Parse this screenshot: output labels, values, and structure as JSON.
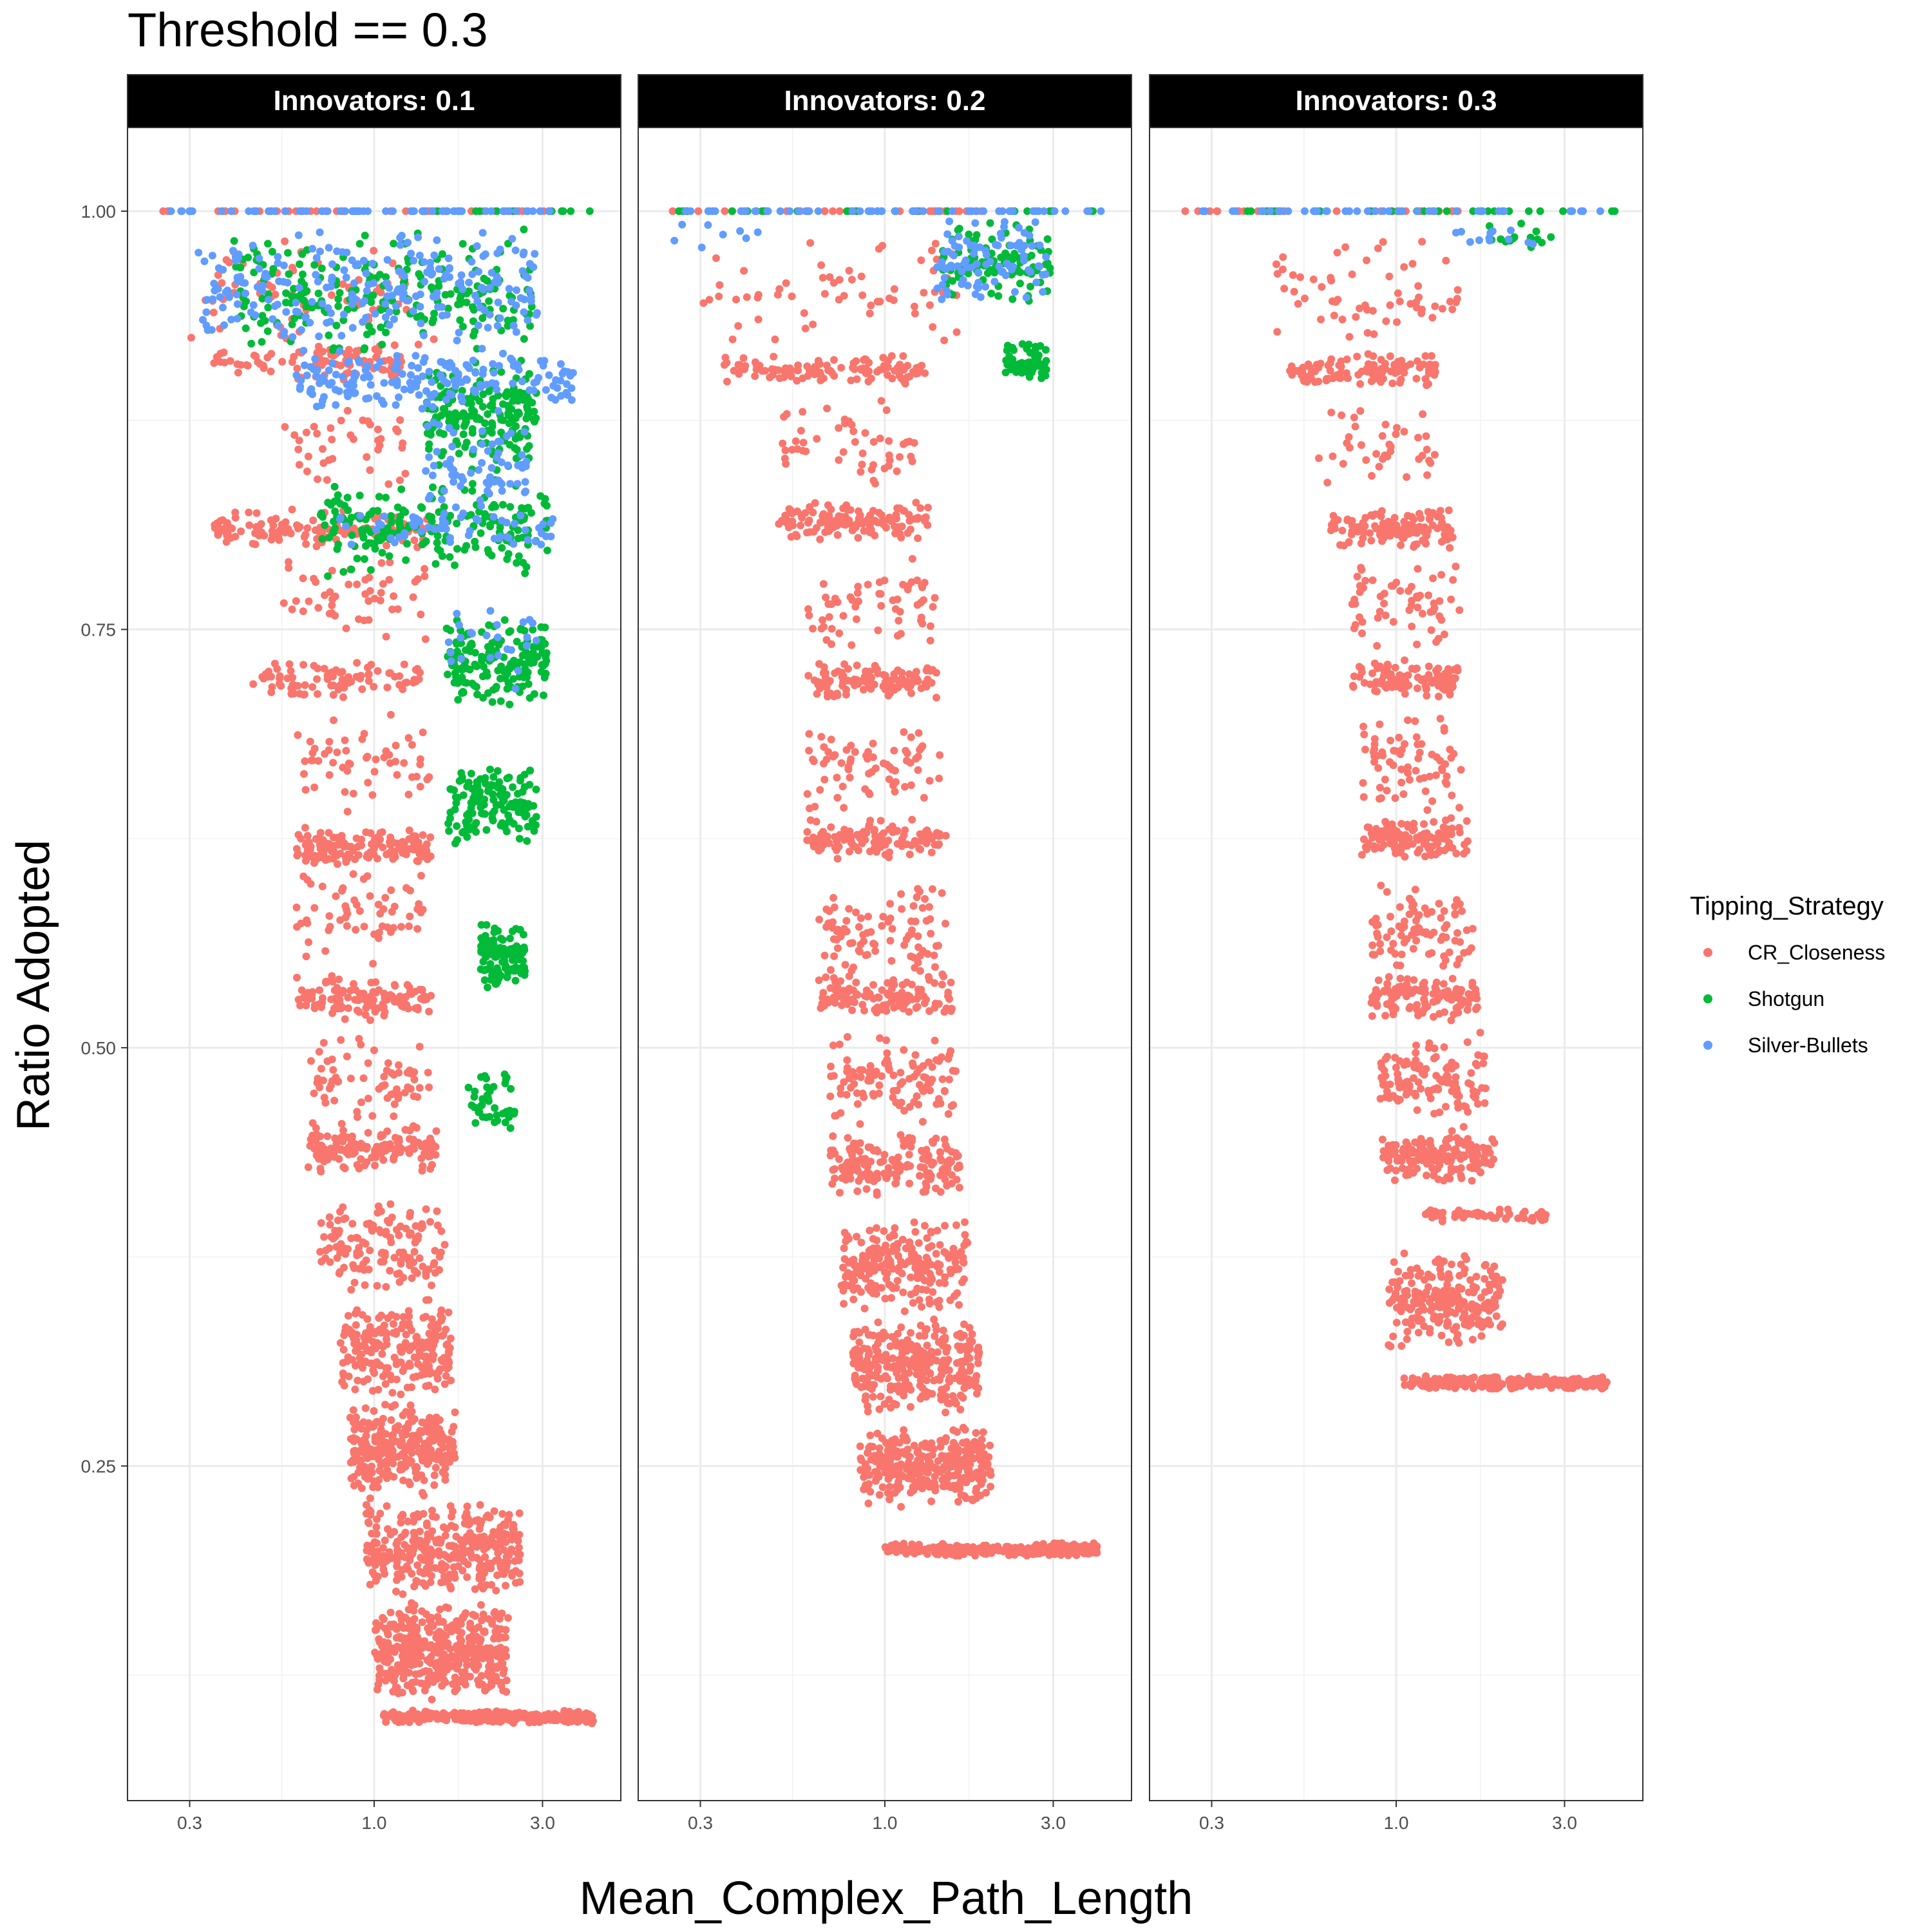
{
  "title": "Threshold == 0.3",
  "xlabel": "Mean_Complex_Path_Length",
  "ylabel": "Ratio Adopted",
  "legend": {
    "title": "Tipping_Strategy",
    "items": [
      {
        "label": "CR_Closeness",
        "color": "#F8766D"
      },
      {
        "label": "Shotgun",
        "color": "#00BA38"
      },
      {
        "label": "Silver-Bullets",
        "color": "#619CFF"
      }
    ]
  },
  "chart_data": {
    "type": "scatter",
    "title": "Threshold == 0.3",
    "xlabel": "Mean_Complex_Path_Length",
    "ylabel": "Ratio Adopted",
    "x_scale": "log10",
    "xlim": [
      0.2,
      5.0
    ],
    "ylim": [
      0.05,
      1.05
    ],
    "x_ticks": [
      "0.3",
      "1.0",
      "3.0"
    ],
    "x_tick_values": [
      0.3,
      1.0,
      3.0
    ],
    "y_ticks": [
      "0.25",
      "0.50",
      "0.75",
      "1.00"
    ],
    "y_tick_values": [
      0.25,
      0.5,
      0.75,
      1.0
    ],
    "grid": true,
    "legend_position": "right",
    "facets": [
      {
        "label": "Innovators: 0.1",
        "series": [
          {
            "name": "CR_Closeness",
            "color": "#F8766D",
            "bands": [
              {
                "y": 1.0,
                "x_min": 0.25,
                "x_max": 3.3,
                "count": 45,
                "y_spread": 0.0
              },
              {
                "y": 0.95,
                "x_min": 0.3,
                "x_max": 1.5,
                "count": 70,
                "y_spread": 0.04
              },
              {
                "y": 0.91,
                "x_min": 0.35,
                "x_max": 1.2,
                "count": 90,
                "y_spread": 0.012
              },
              {
                "y": 0.86,
                "x_min": 0.55,
                "x_max": 1.3,
                "count": 40,
                "y_spread": 0.03
              },
              {
                "y": 0.81,
                "x_min": 0.35,
                "x_max": 1.45,
                "count": 130,
                "y_spread": 0.012
              },
              {
                "y": 0.77,
                "x_min": 0.55,
                "x_max": 1.4,
                "count": 50,
                "y_spread": 0.03
              },
              {
                "y": 0.72,
                "x_min": 0.45,
                "x_max": 1.35,
                "count": 90,
                "y_spread": 0.012
              },
              {
                "y": 0.67,
                "x_min": 0.6,
                "x_max": 1.45,
                "count": 55,
                "y_spread": 0.03
              },
              {
                "y": 0.62,
                "x_min": 0.6,
                "x_max": 1.45,
                "count": 140,
                "y_spread": 0.012
              },
              {
                "y": 0.58,
                "x_min": 0.6,
                "x_max": 1.4,
                "count": 60,
                "y_spread": 0.03
              },
              {
                "y": 0.53,
                "x_min": 0.6,
                "x_max": 1.45,
                "count": 120,
                "y_spread": 0.014
              },
              {
                "y": 0.48,
                "x_min": 0.65,
                "x_max": 1.45,
                "count": 70,
                "y_spread": 0.03
              },
              {
                "y": 0.44,
                "x_min": 0.65,
                "x_max": 1.55,
                "count": 150,
                "y_spread": 0.015
              },
              {
                "y": 0.38,
                "x_min": 0.7,
                "x_max": 1.6,
                "count": 140,
                "y_spread": 0.03
              },
              {
                "y": 0.32,
                "x_min": 0.8,
                "x_max": 1.65,
                "count": 220,
                "y_spread": 0.03
              },
              {
                "y": 0.26,
                "x_min": 0.85,
                "x_max": 1.7,
                "count": 280,
                "y_spread": 0.03
              },
              {
                "y": 0.2,
                "x_min": 0.95,
                "x_max": 2.6,
                "count": 340,
                "y_spread": 0.03
              },
              {
                "y": 0.14,
                "x_min": 1.0,
                "x_max": 2.4,
                "count": 420,
                "y_spread": 0.03
              },
              {
                "y": 0.1,
                "x_min": 1.05,
                "x_max": 4.2,
                "count": 300,
                "y_spread": 0.004
              }
            ]
          },
          {
            "name": "Shotgun",
            "color": "#00BA38",
            "bands": [
              {
                "y": 1.0,
                "x_min": 1.5,
                "x_max": 4.2,
                "count": 15,
                "y_spread": 0.0
              },
              {
                "y": 0.95,
                "x_min": 0.4,
                "x_max": 2.8,
                "count": 220,
                "y_spread": 0.04
              },
              {
                "y": 0.88,
                "x_min": 1.4,
                "x_max": 2.9,
                "count": 200,
                "y_spread": 0.035
              },
              {
                "y": 0.81,
                "x_min": 0.7,
                "x_max": 3.2,
                "count": 200,
                "y_spread": 0.03
              },
              {
                "y": 0.73,
                "x_min": 1.6,
                "x_max": 3.1,
                "count": 160,
                "y_spread": 0.03
              },
              {
                "y": 0.645,
                "x_min": 1.6,
                "x_max": 2.9,
                "count": 140,
                "y_spread": 0.025
              },
              {
                "y": 0.555,
                "x_min": 2.0,
                "x_max": 2.7,
                "count": 100,
                "y_spread": 0.02
              },
              {
                "y": 0.47,
                "x_min": 1.85,
                "x_max": 2.5,
                "count": 40,
                "y_spread": 0.02
              }
            ]
          },
          {
            "name": "Silver-Bullets",
            "color": "#619CFF",
            "bands": [
              {
                "y": 1.0,
                "x_min": 0.25,
                "x_max": 3.4,
                "count": 60,
                "y_spread": 0.0
              },
              {
                "y": 0.955,
                "x_min": 0.3,
                "x_max": 2.9,
                "count": 240,
                "y_spread": 0.035
              },
              {
                "y": 0.9,
                "x_min": 0.6,
                "x_max": 3.7,
                "count": 180,
                "y_spread": 0.02
              },
              {
                "y": 0.85,
                "x_min": 1.4,
                "x_max": 2.8,
                "count": 70,
                "y_spread": 0.03
              },
              {
                "y": 0.81,
                "x_min": 0.8,
                "x_max": 3.4,
                "count": 60,
                "y_spread": 0.012
              },
              {
                "y": 0.74,
                "x_min": 1.6,
                "x_max": 3.0,
                "count": 25,
                "y_spread": 0.03
              }
            ]
          }
        ]
      },
      {
        "label": "Innovators: 0.2",
        "series": [
          {
            "name": "CR_Closeness",
            "color": "#F8766D",
            "bands": [
              {
                "y": 1.0,
                "x_min": 0.25,
                "x_max": 2.0,
                "count": 40,
                "y_spread": 0.0
              },
              {
                "y": 0.95,
                "x_min": 0.3,
                "x_max": 1.6,
                "count": 60,
                "y_spread": 0.035
              },
              {
                "y": 0.905,
                "x_min": 0.35,
                "x_max": 1.3,
                "count": 120,
                "y_spread": 0.01
              },
              {
                "y": 0.86,
                "x_min": 0.5,
                "x_max": 1.25,
                "count": 50,
                "y_spread": 0.03
              },
              {
                "y": 0.815,
                "x_min": 0.5,
                "x_max": 1.35,
                "count": 130,
                "y_spread": 0.012
              },
              {
                "y": 0.765,
                "x_min": 0.6,
                "x_max": 1.4,
                "count": 60,
                "y_spread": 0.03
              },
              {
                "y": 0.72,
                "x_min": 0.6,
                "x_max": 1.4,
                "count": 110,
                "y_spread": 0.012
              },
              {
                "y": 0.67,
                "x_min": 0.6,
                "x_max": 1.45,
                "count": 70,
                "y_spread": 0.03
              },
              {
                "y": 0.625,
                "x_min": 0.6,
                "x_max": 1.5,
                "count": 130,
                "y_spread": 0.013
              },
              {
                "y": 0.57,
                "x_min": 0.65,
                "x_max": 1.5,
                "count": 90,
                "y_spread": 0.03
              },
              {
                "y": 0.53,
                "x_min": 0.65,
                "x_max": 1.55,
                "count": 120,
                "y_spread": 0.014
              },
              {
                "y": 0.48,
                "x_min": 0.7,
                "x_max": 1.6,
                "count": 110,
                "y_spread": 0.03
              },
              {
                "y": 0.43,
                "x_min": 0.7,
                "x_max": 1.65,
                "count": 170,
                "y_spread": 0.02
              },
              {
                "y": 0.37,
                "x_min": 0.75,
                "x_max": 1.75,
                "count": 220,
                "y_spread": 0.03
              },
              {
                "y": 0.31,
                "x_min": 0.8,
                "x_max": 1.85,
                "count": 300,
                "y_spread": 0.03
              },
              {
                "y": 0.25,
                "x_min": 0.85,
                "x_max": 2.0,
                "count": 320,
                "y_spread": 0.025
              },
              {
                "y": 0.2,
                "x_min": 1.0,
                "x_max": 4.0,
                "count": 280,
                "y_spread": 0.004
              }
            ]
          },
          {
            "name": "Shotgun",
            "color": "#00BA38",
            "bands": [
              {
                "y": 1.0,
                "x_min": 0.25,
                "x_max": 4.0,
                "count": 25,
                "y_spread": 0.0
              },
              {
                "y": 0.97,
                "x_min": 1.45,
                "x_max": 3.0,
                "count": 110,
                "y_spread": 0.025
              },
              {
                "y": 0.91,
                "x_min": 2.2,
                "x_max": 3.0,
                "count": 60,
                "y_spread": 0.012
              }
            ]
          },
          {
            "name": "Silver-Bullets",
            "color": "#619CFF",
            "bands": [
              {
                "y": 1.0,
                "x_min": 0.25,
                "x_max": 4.3,
                "count": 55,
                "y_spread": 0.0
              },
              {
                "y": 0.97,
                "x_min": 1.4,
                "x_max": 2.9,
                "count": 90,
                "y_spread": 0.03
              },
              {
                "y": 0.985,
                "x_min": 0.25,
                "x_max": 0.45,
                "count": 8,
                "y_spread": 0.01
              }
            ]
          }
        ]
      },
      {
        "label": "Innovators: 0.3",
        "series": [
          {
            "name": "CR_Closeness",
            "color": "#F8766D",
            "bands": [
              {
                "y": 1.0,
                "x_min": 0.25,
                "x_max": 1.6,
                "count": 35,
                "y_spread": 0.0
              },
              {
                "y": 0.95,
                "x_min": 0.45,
                "x_max": 1.5,
                "count": 60,
                "y_spread": 0.035
              },
              {
                "y": 0.905,
                "x_min": 0.5,
                "x_max": 1.3,
                "count": 110,
                "y_spread": 0.01
              },
              {
                "y": 0.86,
                "x_min": 0.6,
                "x_max": 1.3,
                "count": 40,
                "y_spread": 0.03
              },
              {
                "y": 0.81,
                "x_min": 0.65,
                "x_max": 1.45,
                "count": 130,
                "y_spread": 0.012
              },
              {
                "y": 0.765,
                "x_min": 0.75,
                "x_max": 1.55,
                "count": 60,
                "y_spread": 0.03
              },
              {
                "y": 0.72,
                "x_min": 0.75,
                "x_max": 1.5,
                "count": 100,
                "y_spread": 0.012
              },
              {
                "y": 0.67,
                "x_min": 0.8,
                "x_max": 1.55,
                "count": 70,
                "y_spread": 0.03
              },
              {
                "y": 0.625,
                "x_min": 0.8,
                "x_max": 1.6,
                "count": 130,
                "y_spread": 0.013
              },
              {
                "y": 0.57,
                "x_min": 0.85,
                "x_max": 1.65,
                "count": 90,
                "y_spread": 0.03
              },
              {
                "y": 0.53,
                "x_min": 0.85,
                "x_max": 1.7,
                "count": 120,
                "y_spread": 0.014
              },
              {
                "y": 0.48,
                "x_min": 0.9,
                "x_max": 1.8,
                "count": 120,
                "y_spread": 0.03
              },
              {
                "y": 0.435,
                "x_min": 0.9,
                "x_max": 1.9,
                "count": 160,
                "y_spread": 0.015
              },
              {
                "y": 0.4,
                "x_min": 1.2,
                "x_max": 2.7,
                "count": 60,
                "y_spread": 0.004
              },
              {
                "y": 0.35,
                "x_min": 0.95,
                "x_max": 2.0,
                "count": 220,
                "y_spread": 0.03
              },
              {
                "y": 0.3,
                "x_min": 1.05,
                "x_max": 4.0,
                "count": 280,
                "y_spread": 0.004
              }
            ]
          },
          {
            "name": "Shotgun",
            "color": "#00BA38",
            "bands": [
              {
                "y": 1.0,
                "x_min": 0.25,
                "x_max": 4.3,
                "count": 25,
                "y_spread": 0.0
              },
              {
                "y": 0.985,
                "x_min": 1.8,
                "x_max": 2.9,
                "count": 14,
                "y_spread": 0.01
              }
            ]
          },
          {
            "name": "Silver-Bullets",
            "color": "#619CFF",
            "bands": [
              {
                "y": 1.0,
                "x_min": 0.25,
                "x_max": 3.8,
                "count": 45,
                "y_spread": 0.0
              },
              {
                "y": 0.985,
                "x_min": 1.4,
                "x_max": 2.9,
                "count": 12,
                "y_spread": 0.008
              }
            ]
          }
        ]
      }
    ]
  }
}
